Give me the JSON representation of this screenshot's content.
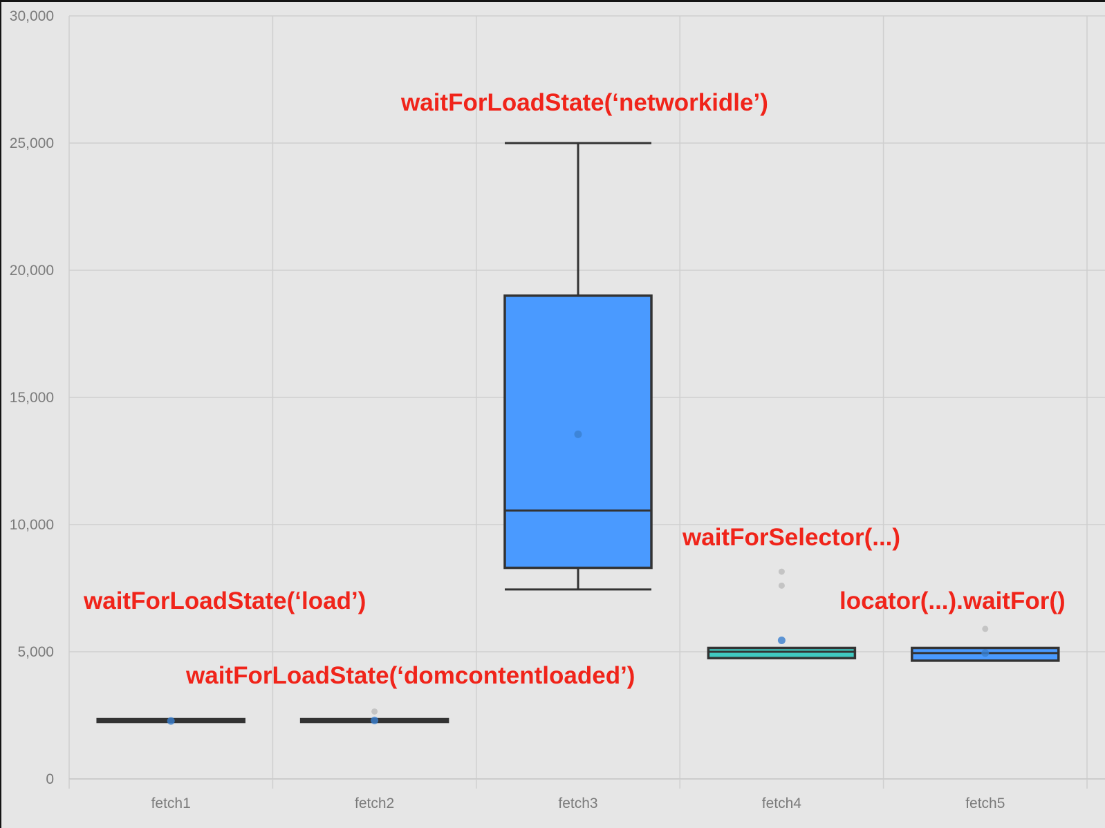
{
  "chart_data": {
    "type": "box",
    "categories": [
      "fetch1",
      "fetch2",
      "fetch3",
      "fetch4",
      "fetch5"
    ],
    "ylim": [
      0,
      30000
    ],
    "y_ticks": [
      0,
      5000,
      10000,
      15000,
      20000,
      25000,
      30000
    ],
    "y_tick_labels": [
      "0",
      "5,000",
      "10,000",
      "15,000",
      "20,000",
      "25,000",
      "30,000"
    ],
    "grid": true,
    "title": "",
    "xlabel": "",
    "ylabel": "",
    "boxes": [
      {
        "category": "fetch1",
        "whisker_low": 2250,
        "q1": 2250,
        "median": 2300,
        "q3": 2350,
        "whisker_high": 2350,
        "mean": 2280,
        "outliers": [],
        "color": "#4a9aff"
      },
      {
        "category": "fetch2",
        "whisker_low": 2250,
        "q1": 2250,
        "median": 2300,
        "q3": 2350,
        "whisker_high": 2350,
        "mean": 2300,
        "outliers": [
          2650
        ],
        "color": "#4a9aff"
      },
      {
        "category": "fetch3",
        "whisker_low": 7450,
        "q1": 8300,
        "median": 10550,
        "q3": 19000,
        "whisker_high": 25000,
        "mean": 13550,
        "outliers": [],
        "color": "#4a9aff"
      },
      {
        "category": "fetch4",
        "whisker_low": 4750,
        "q1": 4750,
        "median": 5000,
        "q3": 5150,
        "whisker_high": 5150,
        "mean": 5450,
        "outliers": [
          8150,
          7600
        ],
        "color": "#40c8c0"
      },
      {
        "category": "fetch5",
        "whisker_low": 4650,
        "q1": 4650,
        "median": 4950,
        "q3": 5150,
        "whisker_high": 5150,
        "mean": 4950,
        "outliers": [
          5900
        ],
        "color": "#4a9aff"
      }
    ],
    "annotations": [
      {
        "text": "waitForLoadState(‘networkidle’)",
        "near": "fetch3"
      },
      {
        "text": "waitForSelector(...)",
        "near": "fetch4"
      },
      {
        "text": "locator(...).waitFor()",
        "near": "fetch5"
      },
      {
        "text": "waitForLoadState(‘load’)",
        "near": "fetch1"
      },
      {
        "text": "waitForLoadState(‘domcontentloaded’)",
        "near": "fetch2"
      }
    ]
  }
}
